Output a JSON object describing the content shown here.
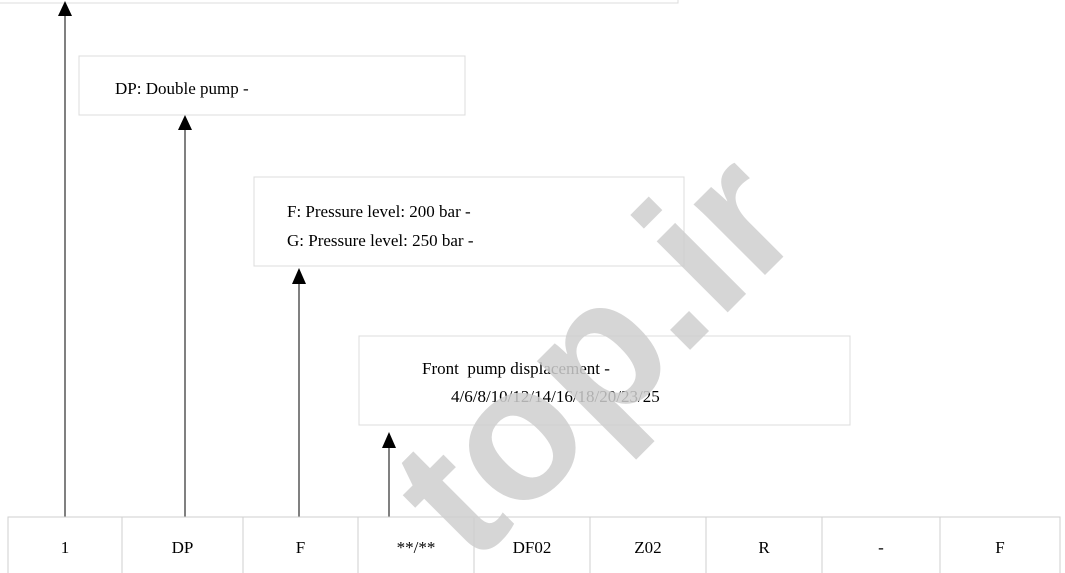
{
  "boxes": [
    {
      "lines": [
        "DP: Double pump -"
      ]
    },
    {
      "lines": [
        "F: Pressure level: 200 bar -",
        "G: Pressure level: 250 bar -"
      ]
    },
    {
      "lines": [
        "Front  pump displacement -",
        "4/6/8/10/12/14/16/18/20/23/25"
      ]
    }
  ],
  "table": {
    "rows": [
      [
        "1",
        "DP",
        "F",
        "**/**",
        "DF02",
        "Z02",
        "R",
        "-",
        "F"
      ]
    ]
  },
  "watermark": "top.ir"
}
